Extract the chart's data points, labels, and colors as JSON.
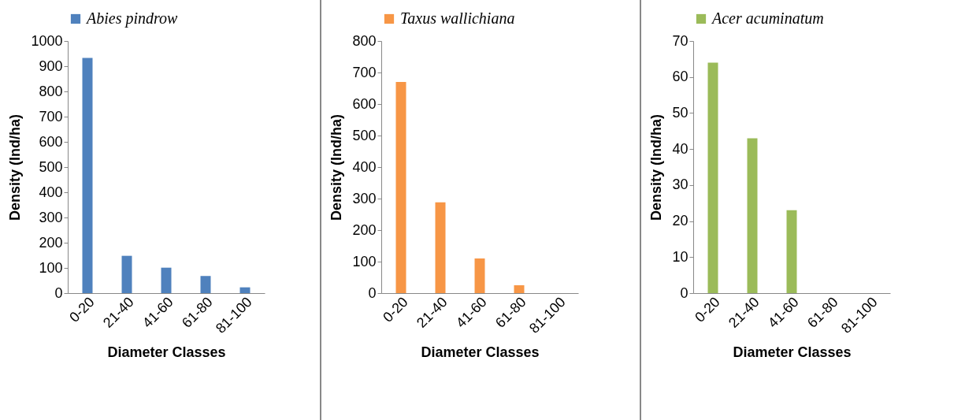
{
  "chart_data": [
    {
      "type": "bar",
      "xlabel": "Diameter Classes",
      "ylabel": "Density (Ind/ha)",
      "categories": [
        "0-20",
        "21-40",
        "41-60",
        "61-80",
        "81-100"
      ],
      "series": [
        {
          "name": "Abies pindrow",
          "color": "#4f81bd",
          "values": [
            933,
            148,
            101,
            68,
            23
          ]
        }
      ],
      "ylim": [
        0,
        1000
      ],
      "yticks": [
        0,
        100,
        200,
        300,
        400,
        500,
        600,
        700,
        800,
        900,
        1000
      ],
      "legend": "top"
    },
    {
      "type": "bar",
      "xlabel": "Diameter Classes",
      "ylabel": "Density (Ind/ha)",
      "categories": [
        "0-20",
        "21-40",
        "41-60",
        "61-80",
        "81-100"
      ],
      "series": [
        {
          "name": "Taxus wallichiana",
          "color": "#f79646",
          "values": [
            670,
            288,
            110,
            25,
            0
          ]
        }
      ],
      "ylim": [
        0,
        800
      ],
      "yticks": [
        0,
        100,
        200,
        300,
        400,
        500,
        600,
        700,
        800
      ],
      "legend": "top"
    },
    {
      "type": "bar",
      "xlabel": "Diameter Classes",
      "ylabel": "Density (Ind/ha)",
      "categories": [
        "0-20",
        "21-40",
        "41-60",
        "61-80",
        "81-100"
      ],
      "series": [
        {
          "name": "Acer acuminatum",
          "color": "#9bbb59",
          "values": [
            64,
            43,
            23,
            0,
            0
          ]
        }
      ],
      "ylim": [
        0,
        70
      ],
      "yticks": [
        0,
        10,
        20,
        30,
        40,
        50,
        60,
        70
      ],
      "legend": "top"
    }
  ]
}
